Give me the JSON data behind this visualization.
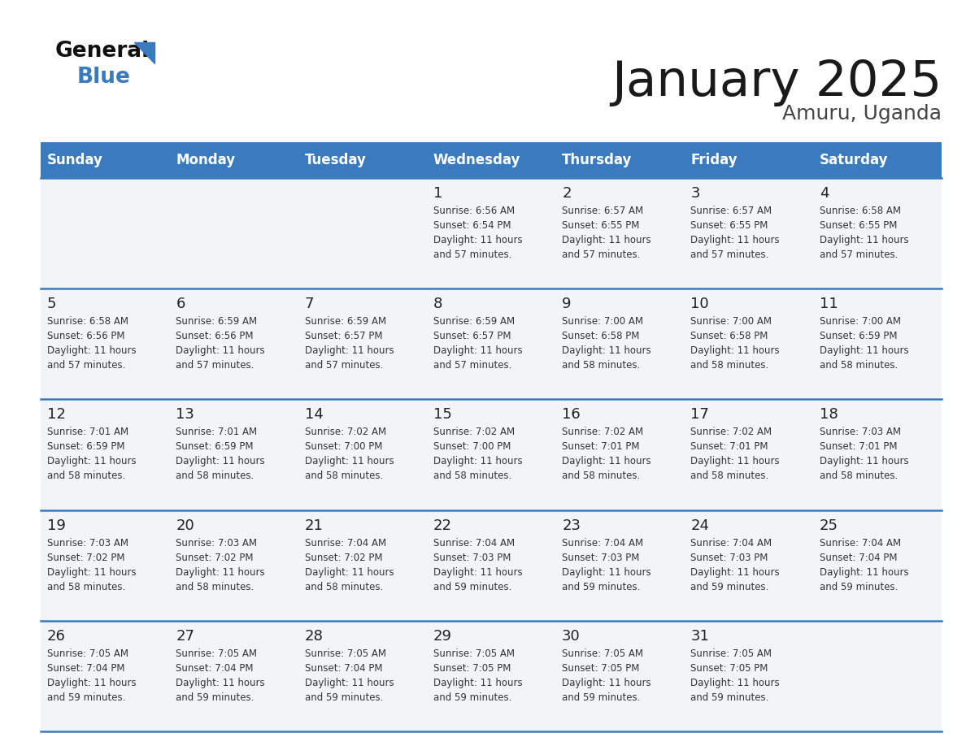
{
  "title": "January 2025",
  "subtitle": "Amuru, Uganda",
  "header_color": "#3a7abf",
  "header_text_color": "#ffffff",
  "cell_bg_color": "#f2f5f8",
  "row_line_color": "#3a7abf",
  "text_color": "#333333",
  "day_num_color": "#222222",
  "days_of_week": [
    "Sunday",
    "Monday",
    "Tuesday",
    "Wednesday",
    "Thursday",
    "Friday",
    "Saturday"
  ],
  "weeks": [
    [
      {
        "day": null,
        "info": null
      },
      {
        "day": null,
        "info": null
      },
      {
        "day": null,
        "info": null
      },
      {
        "day": 1,
        "info": "Sunrise: 6:56 AM\nSunset: 6:54 PM\nDaylight: 11 hours\nand 57 minutes."
      },
      {
        "day": 2,
        "info": "Sunrise: 6:57 AM\nSunset: 6:55 PM\nDaylight: 11 hours\nand 57 minutes."
      },
      {
        "day": 3,
        "info": "Sunrise: 6:57 AM\nSunset: 6:55 PM\nDaylight: 11 hours\nand 57 minutes."
      },
      {
        "day": 4,
        "info": "Sunrise: 6:58 AM\nSunset: 6:55 PM\nDaylight: 11 hours\nand 57 minutes."
      }
    ],
    [
      {
        "day": 5,
        "info": "Sunrise: 6:58 AM\nSunset: 6:56 PM\nDaylight: 11 hours\nand 57 minutes."
      },
      {
        "day": 6,
        "info": "Sunrise: 6:59 AM\nSunset: 6:56 PM\nDaylight: 11 hours\nand 57 minutes."
      },
      {
        "day": 7,
        "info": "Sunrise: 6:59 AM\nSunset: 6:57 PM\nDaylight: 11 hours\nand 57 minutes."
      },
      {
        "day": 8,
        "info": "Sunrise: 6:59 AM\nSunset: 6:57 PM\nDaylight: 11 hours\nand 57 minutes."
      },
      {
        "day": 9,
        "info": "Sunrise: 7:00 AM\nSunset: 6:58 PM\nDaylight: 11 hours\nand 58 minutes."
      },
      {
        "day": 10,
        "info": "Sunrise: 7:00 AM\nSunset: 6:58 PM\nDaylight: 11 hours\nand 58 minutes."
      },
      {
        "day": 11,
        "info": "Sunrise: 7:00 AM\nSunset: 6:59 PM\nDaylight: 11 hours\nand 58 minutes."
      }
    ],
    [
      {
        "day": 12,
        "info": "Sunrise: 7:01 AM\nSunset: 6:59 PM\nDaylight: 11 hours\nand 58 minutes."
      },
      {
        "day": 13,
        "info": "Sunrise: 7:01 AM\nSunset: 6:59 PM\nDaylight: 11 hours\nand 58 minutes."
      },
      {
        "day": 14,
        "info": "Sunrise: 7:02 AM\nSunset: 7:00 PM\nDaylight: 11 hours\nand 58 minutes."
      },
      {
        "day": 15,
        "info": "Sunrise: 7:02 AM\nSunset: 7:00 PM\nDaylight: 11 hours\nand 58 minutes."
      },
      {
        "day": 16,
        "info": "Sunrise: 7:02 AM\nSunset: 7:01 PM\nDaylight: 11 hours\nand 58 minutes."
      },
      {
        "day": 17,
        "info": "Sunrise: 7:02 AM\nSunset: 7:01 PM\nDaylight: 11 hours\nand 58 minutes."
      },
      {
        "day": 18,
        "info": "Sunrise: 7:03 AM\nSunset: 7:01 PM\nDaylight: 11 hours\nand 58 minutes."
      }
    ],
    [
      {
        "day": 19,
        "info": "Sunrise: 7:03 AM\nSunset: 7:02 PM\nDaylight: 11 hours\nand 58 minutes."
      },
      {
        "day": 20,
        "info": "Sunrise: 7:03 AM\nSunset: 7:02 PM\nDaylight: 11 hours\nand 58 minutes."
      },
      {
        "day": 21,
        "info": "Sunrise: 7:04 AM\nSunset: 7:02 PM\nDaylight: 11 hours\nand 58 minutes."
      },
      {
        "day": 22,
        "info": "Sunrise: 7:04 AM\nSunset: 7:03 PM\nDaylight: 11 hours\nand 59 minutes."
      },
      {
        "day": 23,
        "info": "Sunrise: 7:04 AM\nSunset: 7:03 PM\nDaylight: 11 hours\nand 59 minutes."
      },
      {
        "day": 24,
        "info": "Sunrise: 7:04 AM\nSunset: 7:03 PM\nDaylight: 11 hours\nand 59 minutes."
      },
      {
        "day": 25,
        "info": "Sunrise: 7:04 AM\nSunset: 7:04 PM\nDaylight: 11 hours\nand 59 minutes."
      }
    ],
    [
      {
        "day": 26,
        "info": "Sunrise: 7:05 AM\nSunset: 7:04 PM\nDaylight: 11 hours\nand 59 minutes."
      },
      {
        "day": 27,
        "info": "Sunrise: 7:05 AM\nSunset: 7:04 PM\nDaylight: 11 hours\nand 59 minutes."
      },
      {
        "day": 28,
        "info": "Sunrise: 7:05 AM\nSunset: 7:04 PM\nDaylight: 11 hours\nand 59 minutes."
      },
      {
        "day": 29,
        "info": "Sunrise: 7:05 AM\nSunset: 7:05 PM\nDaylight: 11 hours\nand 59 minutes."
      },
      {
        "day": 30,
        "info": "Sunrise: 7:05 AM\nSunset: 7:05 PM\nDaylight: 11 hours\nand 59 minutes."
      },
      {
        "day": 31,
        "info": "Sunrise: 7:05 AM\nSunset: 7:05 PM\nDaylight: 11 hours\nand 59 minutes."
      },
      {
        "day": null,
        "info": null
      }
    ]
  ]
}
